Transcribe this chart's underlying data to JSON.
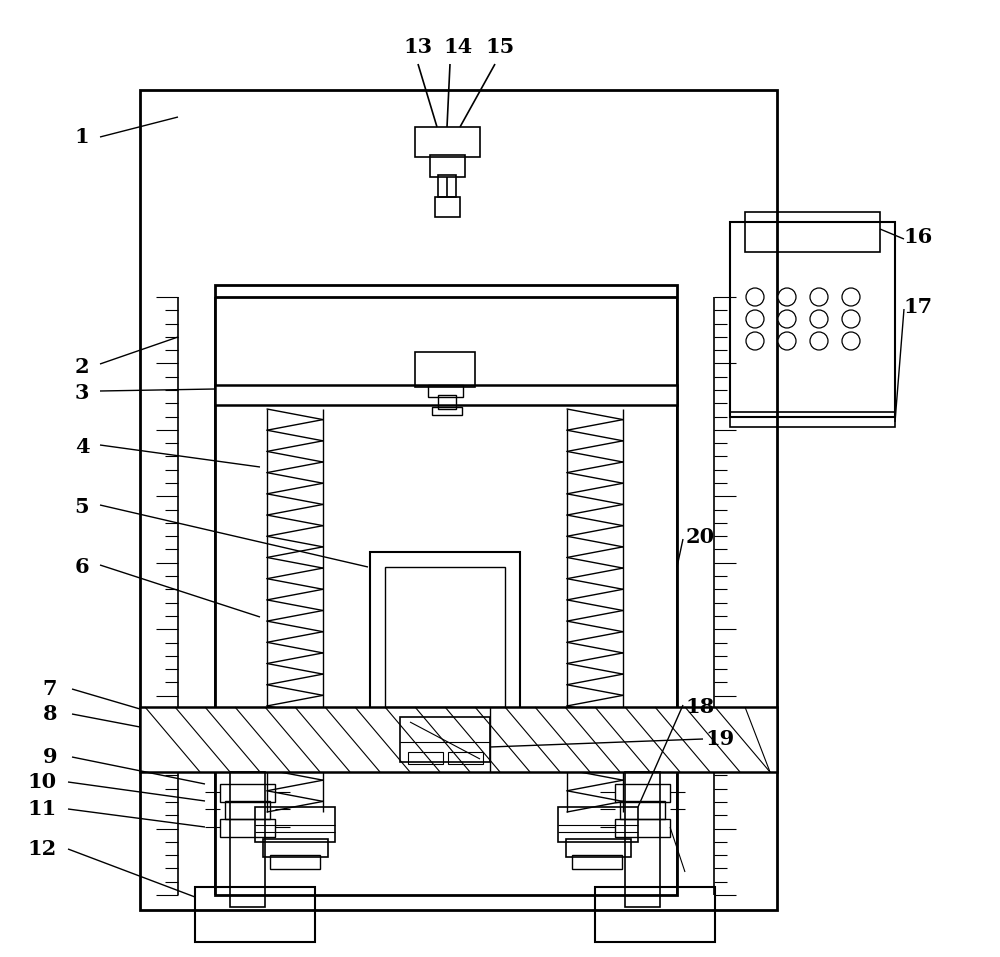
{
  "bg_color": "#ffffff",
  "line_color": "#000000",
  "fig_width": 10.0,
  "fig_height": 9.57
}
